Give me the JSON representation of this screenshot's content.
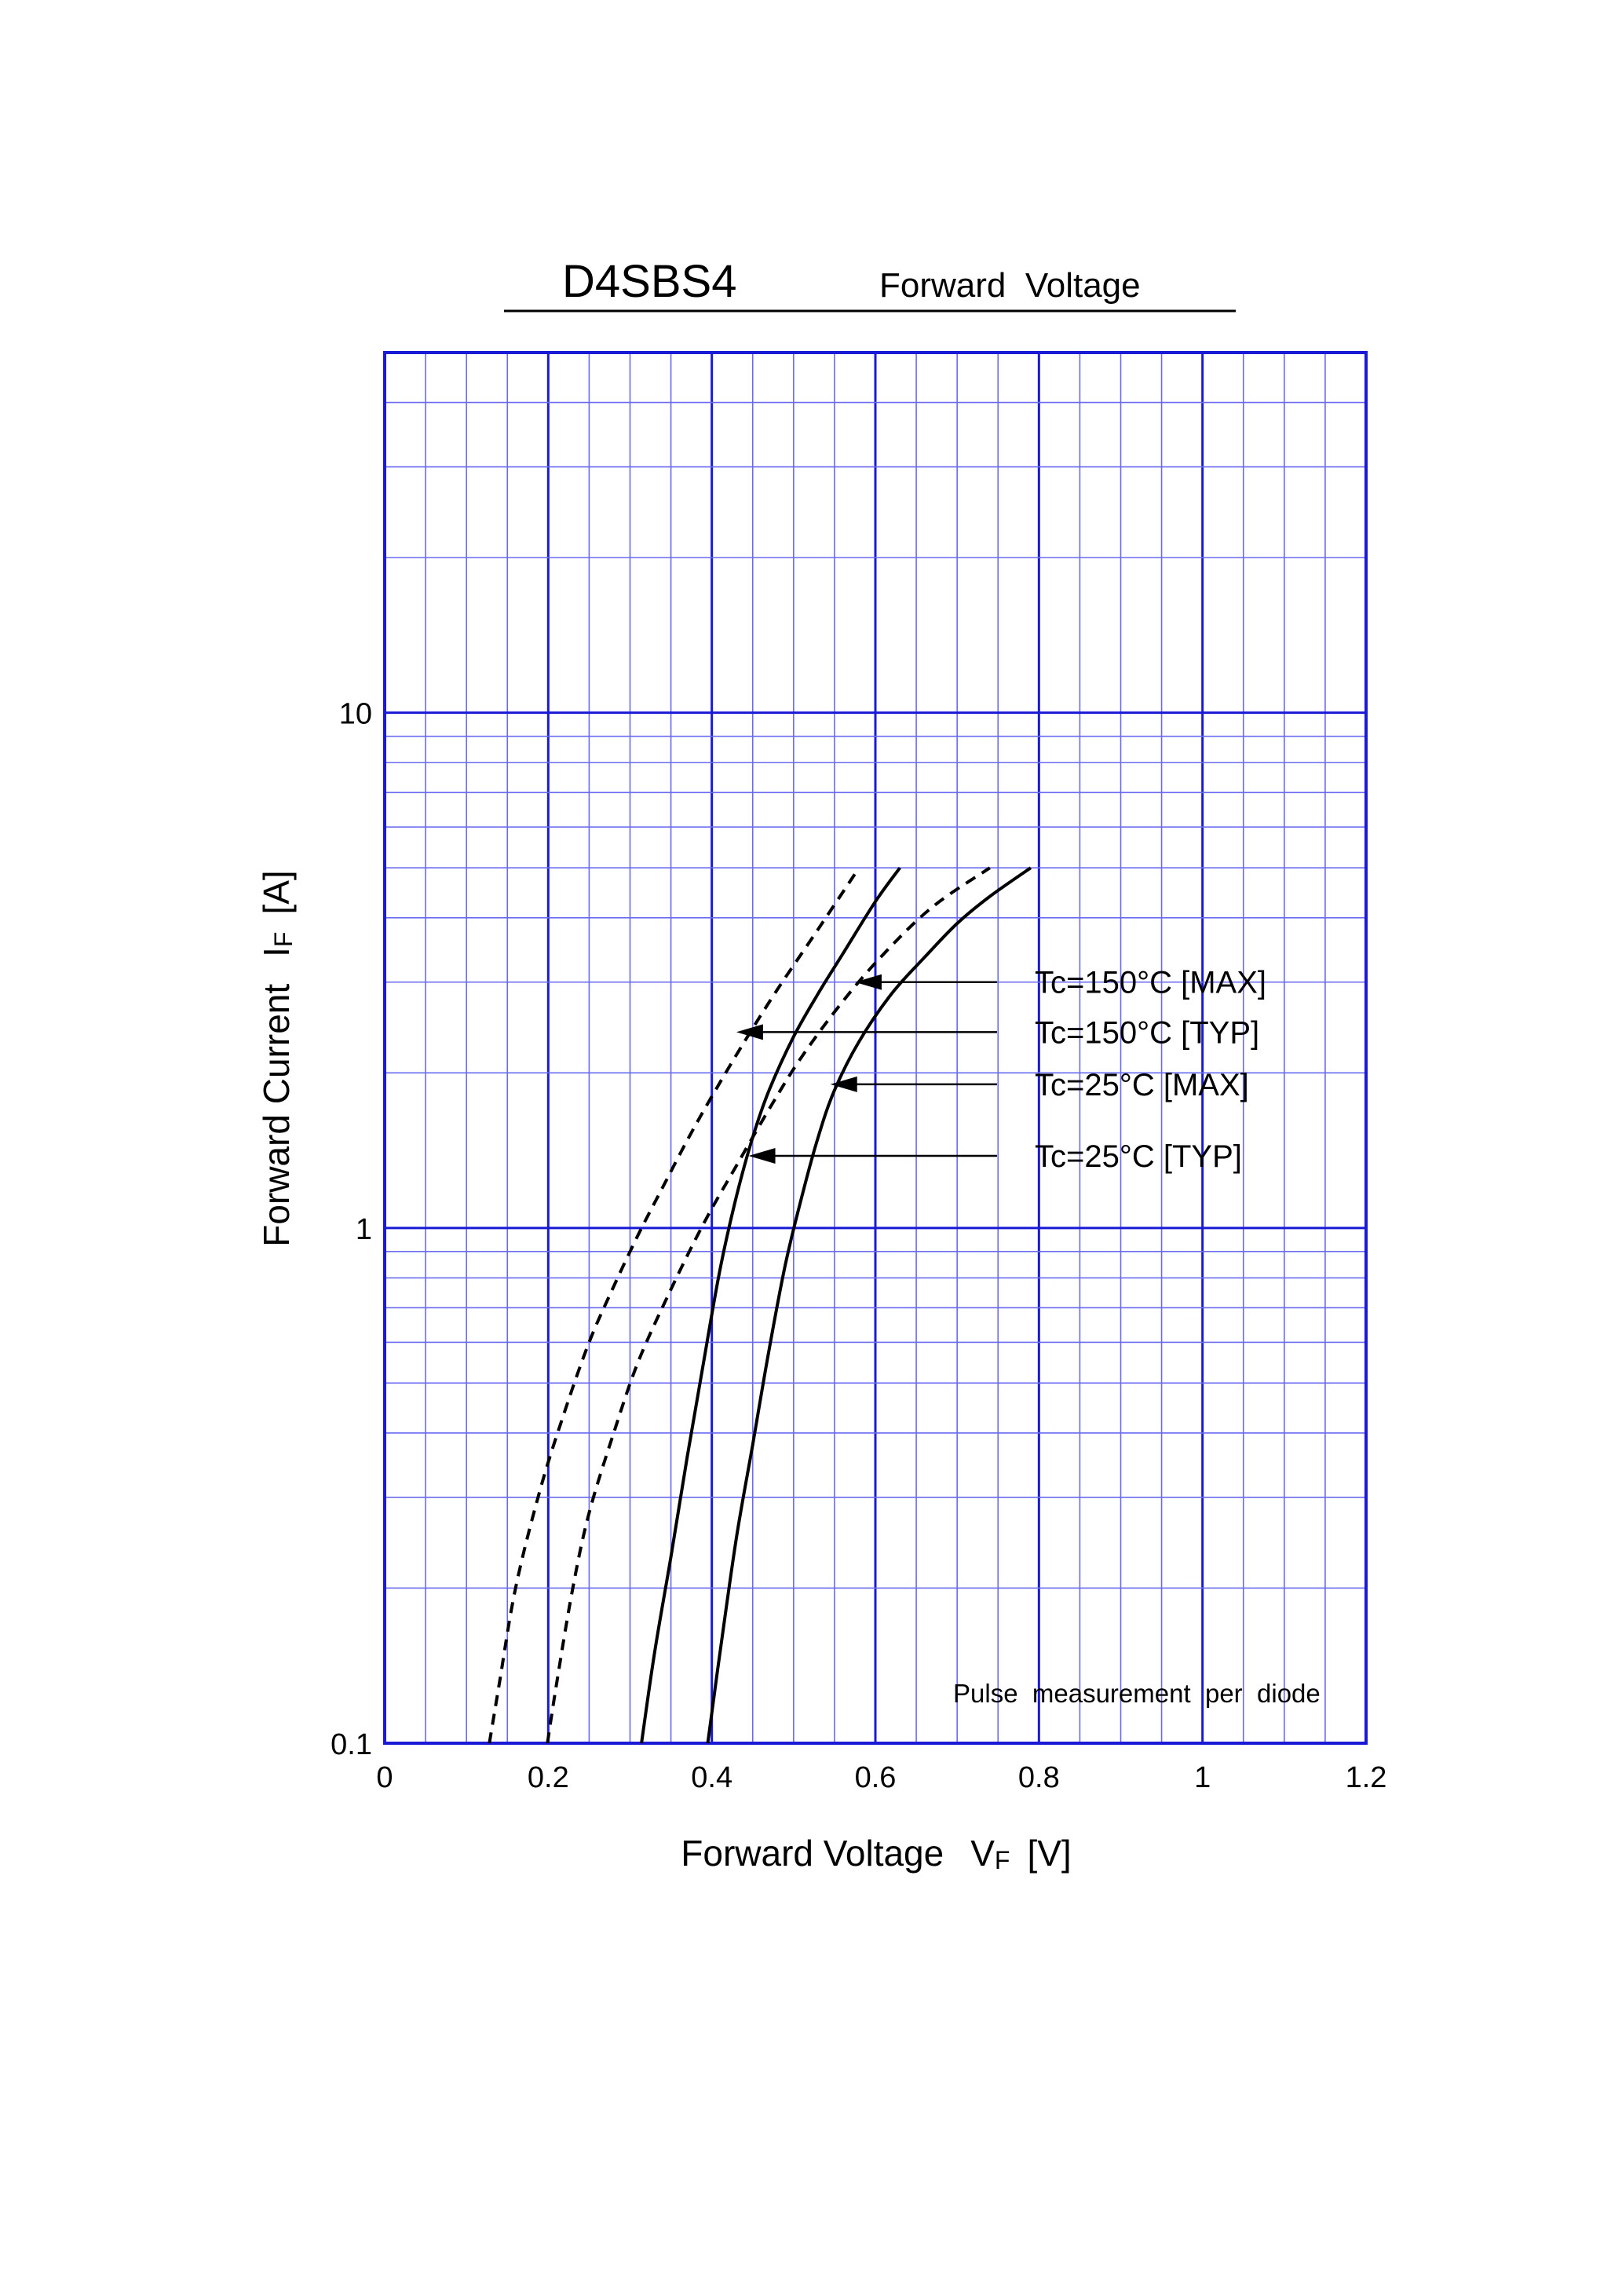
{
  "chart_data": {
    "type": "line",
    "title": "D4SBS4",
    "subtitle": "Forward  Voltage",
    "xlabel": {
      "main": "Forward Voltage",
      "symbol": "V",
      "subscript": "F",
      "unit": "[V]"
    },
    "ylabel": {
      "main": "Forward Current",
      "symbol": "I",
      "subscript": "F",
      "unit": "[A]"
    },
    "xlim": [
      0,
      1.2
    ],
    "ylim": [
      0.1,
      50
    ],
    "yscale": "log",
    "grid": true,
    "x_ticks": [
      "0",
      "0.2",
      "0.4",
      "0.6",
      "0.8",
      "1",
      "1.2"
    ],
    "y_ticks": [
      {
        "value": 10,
        "label": "10"
      },
      {
        "value": 1,
        "label": "1"
      },
      {
        "value": 0.1,
        "label": "0.1"
      }
    ],
    "annotation": "Pulse  measurement  per  diode",
    "series": [
      {
        "name": "Tc=150°C [MAX]",
        "style": "solid",
        "x": [
          0.314,
          0.33,
          0.35,
          0.37,
          0.39,
          0.41,
          0.43,
          0.45,
          0.47,
          0.5,
          0.53,
          0.56,
          0.6,
          0.63
        ],
        "y": [
          0.1,
          0.15,
          0.23,
          0.36,
          0.55,
          0.83,
          1.15,
          1.5,
          1.85,
          2.35,
          2.85,
          3.4,
          4.3,
          5.0
        ]
      },
      {
        "name": "Tc=150°C [TYP]",
        "style": "dashed",
        "x": [
          0.128,
          0.14,
          0.16,
          0.19,
          0.22,
          0.25,
          0.28,
          0.31,
          0.34,
          0.37,
          0.4,
          0.44,
          0.48,
          0.53,
          0.58
        ],
        "y": [
          0.1,
          0.13,
          0.2,
          0.31,
          0.44,
          0.6,
          0.77,
          0.97,
          1.2,
          1.48,
          1.8,
          2.3,
          2.9,
          3.8,
          5.0
        ]
      },
      {
        "name": "Tc=25°C [MAX]",
        "style": "solid",
        "x": [
          0.395,
          0.41,
          0.43,
          0.45,
          0.47,
          0.49,
          0.51,
          0.53,
          0.55,
          0.58,
          0.62,
          0.66,
          0.7,
          0.74,
          0.79
        ],
        "y": [
          0.1,
          0.15,
          0.25,
          0.38,
          0.58,
          0.85,
          1.15,
          1.5,
          1.85,
          2.3,
          2.85,
          3.35,
          3.9,
          4.4,
          5.0
        ]
      },
      {
        "name": "Tc=25°C [TYP]",
        "style": "dashed",
        "x": [
          0.199,
          0.21,
          0.23,
          0.25,
          0.28,
          0.31,
          0.35,
          0.39,
          0.43,
          0.47,
          0.51,
          0.56,
          0.61,
          0.67,
          0.74
        ],
        "y": [
          0.1,
          0.13,
          0.2,
          0.28,
          0.4,
          0.55,
          0.76,
          1.02,
          1.32,
          1.7,
          2.15,
          2.75,
          3.4,
          4.2,
          5.0
        ]
      }
    ],
    "callouts": [
      {
        "label": "Tc=150°C [MAX]",
        "target": [
          0.575,
          3.0
        ]
      },
      {
        "label": "Tc=150°C [TYP]",
        "target": [
          0.43,
          2.4
        ]
      },
      {
        "label": "Tc=25°C [MAX]",
        "target": [
          0.545,
          1.9
        ]
      },
      {
        "label": "Tc=25°C [TYP]",
        "target": [
          0.445,
          1.38
        ]
      }
    ],
    "colors": {
      "grid": "#1a1ad6",
      "grid_minor": "#6a6af0",
      "curve": "#000000"
    }
  }
}
